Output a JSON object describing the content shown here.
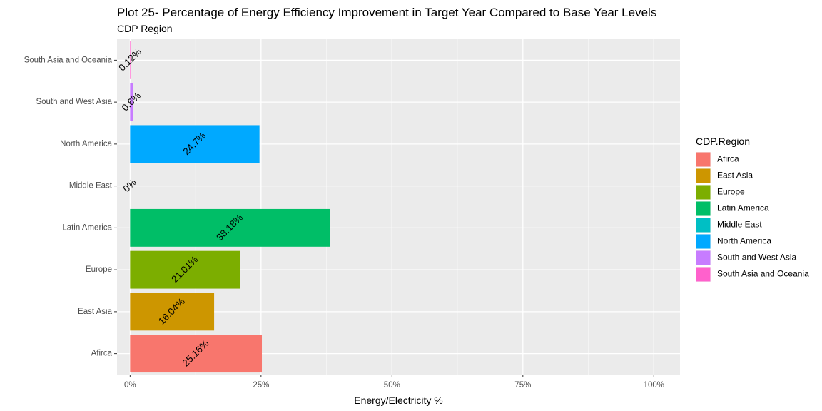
{
  "chart_data": {
    "type": "bar",
    "orientation": "horizontal",
    "title": "Plot 25- Percentage of Energy Efficiency Improvement in Target Year Compared to Base Year Levels",
    "subtitle": "CDP Region",
    "xlabel": "Energy/Electricity %",
    "ylabel": "",
    "xlim": [
      -2.5,
      105
    ],
    "x_ticks": [
      0,
      25,
      50,
      75,
      100
    ],
    "x_tick_labels": [
      "0%",
      "25%",
      "50%",
      "75%",
      "100%"
    ],
    "grid": true,
    "legend_title": "CDP.Region",
    "legend_position": "right",
    "categories": [
      "Afirca",
      "East Asia",
      "Europe",
      "Latin America",
      "Middle East",
      "North America",
      "South and West Asia",
      "South Asia and Oceania"
    ],
    "values": [
      25.16,
      16.04,
      21.01,
      38.18,
      0,
      24.7,
      0.6,
      0.12
    ],
    "value_labels": [
      "25.16%",
      "16.04%",
      "21.01%",
      "38.18%",
      "0%",
      "24.7%",
      "0.6%",
      "0.12%"
    ],
    "colors": [
      "#F8766D",
      "#CD9600",
      "#7CAE00",
      "#00BE67",
      "#00BFC4",
      "#00A9FF",
      "#C77CFF",
      "#FF61CC"
    ]
  }
}
